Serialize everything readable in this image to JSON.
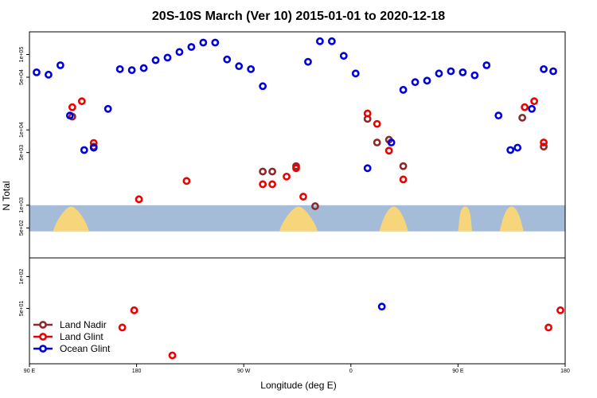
{
  "chart_data": {
    "type": "scatter",
    "title": "20S-10S March (Ver 10)   2015-01-01 to 2020-12-18",
    "xlabel": "Longitude (deg E)",
    "ylabel": "N Total",
    "x_ticks": [
      {
        "lon": 90,
        "label": "90 E"
      },
      {
        "lon": 180,
        "label": "180"
      },
      {
        "lon": 270,
        "label": "90 W"
      },
      {
        "lon": 360,
        "label": "0"
      },
      {
        "lon": 450,
        "label": "90 E"
      },
      {
        "lon": 540,
        "label": "180"
      }
    ],
    "xlim": [
      90,
      540
    ],
    "log_y": true,
    "upper_panel": {
      "ylim": [
        200,
        200000
      ],
      "y_ticks": [
        {
          "value": 500,
          "label": "5e+02"
        },
        {
          "value": 1000,
          "label": "1e+03"
        },
        {
          "value": 5000,
          "label": "5e+03"
        },
        {
          "value": 10000,
          "label": "1e+04"
        },
        {
          "value": 50000,
          "label": "5e+04"
        },
        {
          "value": 100000,
          "label": "1e+05"
        }
      ],
      "map_strip_range": [
        450,
        1000
      ]
    },
    "lower_panel": {
      "ylim": [
        15,
        150
      ],
      "y_ticks": [
        {
          "value": 50,
          "label": "5e+01"
        },
        {
          "value": 100,
          "label": "1e+02"
        }
      ]
    },
    "legend": {
      "position": "bottom-left",
      "entries": [
        {
          "label": "Land Nadir",
          "color": "#8b2a2a"
        },
        {
          "label": "Land Glint",
          "color": "#ee0000"
        },
        {
          "label": "Ocean Glint",
          "color": "#0000dd"
        }
      ]
    },
    "series": [
      {
        "name": "Land Nadir",
        "color": "#8b2a2a",
        "upper": [
          [
            126,
            15000
          ],
          [
            144,
            6000
          ],
          [
            286,
            2800
          ],
          [
            294,
            2800
          ],
          [
            314,
            3300
          ],
          [
            330,
            970
          ],
          [
            374,
            14000
          ],
          [
            382,
            6800
          ],
          [
            392,
            7400
          ],
          [
            404,
            3300
          ],
          [
            504,
            14500
          ],
          [
            522,
            6000
          ]
        ],
        "lower": []
      },
      {
        "name": "Land Glint",
        "color": "#ee0000",
        "upper": [
          [
            126,
            20000
          ],
          [
            134,
            24000
          ],
          [
            144,
            6700
          ],
          [
            182,
            1200
          ],
          [
            222,
            2100
          ],
          [
            286,
            1900
          ],
          [
            294,
            1900
          ],
          [
            306,
            2400
          ],
          [
            314,
            3100
          ],
          [
            320,
            1300
          ],
          [
            374,
            16500
          ],
          [
            382,
            12000
          ],
          [
            392,
            5300
          ],
          [
            404,
            2200
          ],
          [
            506,
            20000
          ],
          [
            514,
            24000
          ],
          [
            522,
            6800
          ]
        ],
        "lower": [
          [
            168,
            33
          ],
          [
            178,
            48
          ],
          [
            210,
            18
          ],
          [
            526,
            33
          ],
          [
            536,
            48
          ]
        ]
      },
      {
        "name": "Ocean Glint",
        "color": "#0000dd",
        "upper": [
          [
            96,
            58000
          ],
          [
            106,
            54000
          ],
          [
            116,
            72000
          ],
          [
            124,
            15500
          ],
          [
            136,
            5400
          ],
          [
            144,
            5800
          ],
          [
            156,
            19000
          ],
          [
            166,
            64000
          ],
          [
            176,
            62000
          ],
          [
            186,
            66000
          ],
          [
            196,
            84000
          ],
          [
            206,
            91000
          ],
          [
            216,
            108000
          ],
          [
            226,
            126000
          ],
          [
            236,
            144000
          ],
          [
            246,
            144000
          ],
          [
            256,
            86000
          ],
          [
            266,
            70000
          ],
          [
            276,
            64000
          ],
          [
            286,
            38000
          ],
          [
            324,
            80000
          ],
          [
            334,
            150000
          ],
          [
            344,
            150000
          ],
          [
            354,
            96000
          ],
          [
            364,
            56000
          ],
          [
            374,
            3100
          ],
          [
            394,
            6800
          ],
          [
            404,
            34000
          ],
          [
            414,
            43000
          ],
          [
            424,
            45000
          ],
          [
            434,
            56000
          ],
          [
            444,
            60000
          ],
          [
            454,
            58000
          ],
          [
            464,
            53000
          ],
          [
            474,
            72000
          ],
          [
            484,
            15500
          ],
          [
            494,
            5400
          ],
          [
            500,
            5800
          ],
          [
            512,
            19000
          ],
          [
            522,
            64000
          ],
          [
            530,
            60000
          ]
        ],
        "lower": [
          [
            386,
            52
          ]
        ]
      }
    ]
  }
}
